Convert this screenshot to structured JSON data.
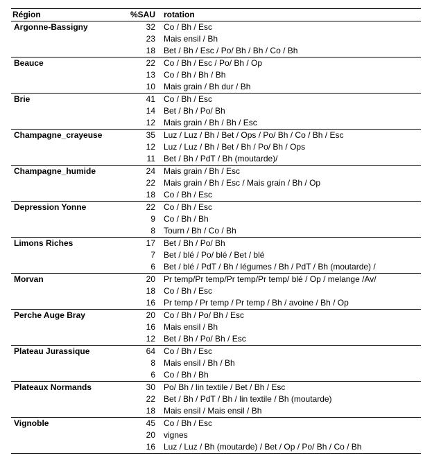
{
  "headers": {
    "region": "Région",
    "sau": "%SAU",
    "rotation": "rotation"
  },
  "regions": [
    {
      "name": "Argonne-Bassigny",
      "rows": [
        {
          "sau": 32,
          "rotation": "Co / Bh / Esc"
        },
        {
          "sau": 23,
          "rotation": "Mais ensil / Bh"
        },
        {
          "sau": 18,
          "rotation": "Bet / Bh / Esc / Po/ Bh / Bh / Co / Bh"
        }
      ]
    },
    {
      "name": "Beauce",
      "rows": [
        {
          "sau": 22,
          "rotation": "Co / Bh / Esc / Po/ Bh / Op"
        },
        {
          "sau": 13,
          "rotation": "Co / Bh / Bh / Bh"
        },
        {
          "sau": 10,
          "rotation": "Mais grain / Bh dur / Bh"
        }
      ]
    },
    {
      "name": "Brie",
      "rows": [
        {
          "sau": 41,
          "rotation": "Co / Bh / Esc"
        },
        {
          "sau": 14,
          "rotation": "Bet / Bh / Po/ Bh"
        },
        {
          "sau": 12,
          "rotation": "Mais grain / Bh / Bh / Esc"
        }
      ]
    },
    {
      "name": "Champagne_crayeuse",
      "rows": [
        {
          "sau": 35,
          "rotation": "Luz / Luz / Bh / Bet / Ops / Po/ Bh / Co / Bh / Esc"
        },
        {
          "sau": 12,
          "rotation": "Luz / Luz / Bh / Bet / Bh / Po/ Bh / Ops"
        },
        {
          "sau": 11,
          "rotation": "Bet / Bh / PdT / Bh (moutarde)/"
        }
      ]
    },
    {
      "name": "Champagne_humide",
      "rows": [
        {
          "sau": 24,
          "rotation": "Mais grain / Bh / Esc"
        },
        {
          "sau": 22,
          "rotation": "Mais grain / Bh / Esc / Mais grain / Bh / Op"
        },
        {
          "sau": 18,
          "rotation": "Co / Bh / Esc"
        }
      ]
    },
    {
      "name": "Depression Yonne",
      "rows": [
        {
          "sau": 22,
          "rotation": "Co / Bh / Esc"
        },
        {
          "sau": 9,
          "rotation": "Co / Bh / Bh"
        },
        {
          "sau": 8,
          "rotation": "Tourn / Bh / Co / Bh"
        }
      ]
    },
    {
      "name": "Limons Riches",
      "rows": [
        {
          "sau": 17,
          "rotation": "Bet / Bh / Po/ Bh"
        },
        {
          "sau": 7,
          "rotation": "Bet / blé / Po/ blé / Bet / blé"
        },
        {
          "sau": 6,
          "rotation": "Bet / blé / PdT / Bh / légumes / Bh / PdT / Bh (moutarde) /"
        }
      ]
    },
    {
      "name": "Morvan",
      "rows": [
        {
          "sau": 20,
          "rotation": "Pr temp/Pr temp/Pr temp/Pr temp/ blé / Op / melange /Av/"
        },
        {
          "sau": 18,
          "rotation": "Co / Bh / Esc"
        },
        {
          "sau": 16,
          "rotation": "Pr temp / Pr temp / Pr temp / Bh / avoine / Bh / Op"
        }
      ]
    },
    {
      "name": "Perche Auge Bray",
      "rows": [
        {
          "sau": 20,
          "rotation": "Co / Bh / Po/ Bh / Esc"
        },
        {
          "sau": 16,
          "rotation": "Mais ensil / Bh"
        },
        {
          "sau": 12,
          "rotation": "Bet / Bh / Po/ Bh / Esc"
        }
      ]
    },
    {
      "name": "Plateau Jurassique",
      "rows": [
        {
          "sau": 64,
          "rotation": "Co / Bh / Esc"
        },
        {
          "sau": 8,
          "rotation": "Mais ensil / Bh / Bh"
        },
        {
          "sau": 6,
          "rotation": "Co / Bh / Bh"
        }
      ]
    },
    {
      "name": "Plateaux Normands",
      "rows": [
        {
          "sau": 30,
          "rotation": "Po/ Bh / lin textile / Bet / Bh / Esc"
        },
        {
          "sau": 22,
          "rotation": "Bet / Bh / PdT / Bh / lin textile / Bh (moutarde)"
        },
        {
          "sau": 18,
          "rotation": "Mais ensil / Mais ensil / Bh"
        }
      ]
    },
    {
      "name": "Vignoble",
      "rows": [
        {
          "sau": 45,
          "rotation": "Co / Bh / Esc"
        },
        {
          "sau": 20,
          "rotation": "vignes"
        },
        {
          "sau": 16,
          "rotation": "Luz / Luz / Bh (moutarde) /  Bet / Op / Po/ Bh / Co / Bh"
        }
      ]
    }
  ]
}
